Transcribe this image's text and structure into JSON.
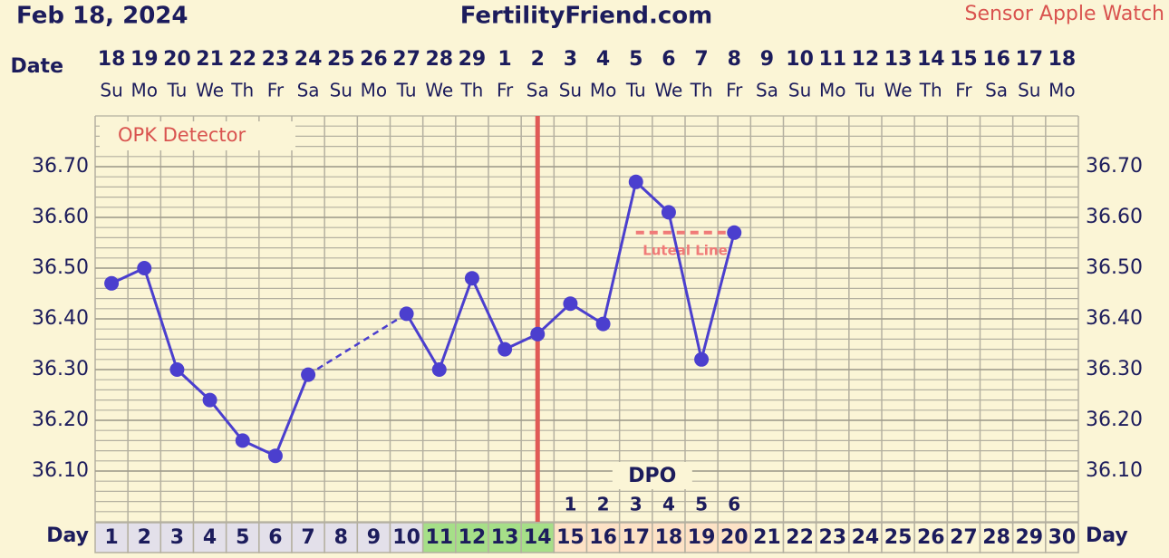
{
  "header": {
    "date": "Feb 18, 2024",
    "site": "FertilityFriend.com",
    "source": "Sensor Apple Watch"
  },
  "chart_data": {
    "type": "line",
    "date_label": "Date",
    "day_label": "Day",
    "opk_label": "OPK Detector",
    "dates": [
      18,
      19,
      20,
      21,
      22,
      23,
      24,
      25,
      26,
      27,
      28,
      29,
      1,
      2,
      3,
      4,
      5,
      6,
      7,
      8,
      9,
      10,
      11,
      12,
      13,
      14,
      15,
      16,
      17,
      18
    ],
    "weekdays": [
      "Su",
      "Mo",
      "Tu",
      "We",
      "Th",
      "Fr",
      "Sa",
      "Su",
      "Mo",
      "Tu",
      "We",
      "Th",
      "Fr",
      "Sa",
      "Su",
      "Mo",
      "Tu",
      "We",
      "Th",
      "Fr",
      "Sa",
      "Su",
      "Mo",
      "Tu",
      "We",
      "Th",
      "Fr",
      "Sa",
      "Su",
      "Mo"
    ],
    "categories": [
      1,
      2,
      3,
      4,
      5,
      6,
      7,
      8,
      9,
      10,
      11,
      12,
      13,
      14,
      15,
      16,
      17,
      18,
      19,
      20,
      21,
      22,
      23,
      24,
      25,
      26,
      27,
      28,
      29,
      30
    ],
    "day_colors": [
      "#e3e0ea",
      "#e3e0ea",
      "#e3e0ea",
      "#e3e0ea",
      "#e3e0ea",
      "#e3e0ea",
      "#e3e0ea",
      "#e3e0ea",
      "#e3e0ea",
      "#e3e0ea",
      "#a6df88",
      "#a6df88",
      "#a6df88",
      "#a6df88",
      "#fde2c6",
      "#fde2c6",
      "#fde2c6",
      "#fde2c6",
      "#fde2c6",
      "#fde2c6",
      "#fbf5d6",
      "#fbf5d6",
      "#fbf5d6",
      "#fbf5d6",
      "#fbf5d6",
      "#fbf5d6",
      "#fbf5d6",
      "#fbf5d6",
      "#fbf5d6",
      "#fbf5d6"
    ],
    "values": [
      36.47,
      36.5,
      36.3,
      36.24,
      36.16,
      36.13,
      36.29,
      null,
      null,
      36.41,
      36.3,
      36.48,
      36.34,
      36.37,
      36.43,
      36.39,
      36.67,
      36.61,
      36.32,
      36.57,
      null,
      null,
      null,
      null,
      null,
      null,
      null,
      null,
      null,
      null
    ],
    "color": "#4b3fce",
    "ylim": [
      36.0,
      36.8
    ],
    "yticks": [
      {
        "value": 36.1,
        "label": "36.10"
      },
      {
        "value": 36.2,
        "label": "36.20"
      },
      {
        "value": 36.3,
        "label": "36.30"
      },
      {
        "value": 36.4,
        "label": "36.40"
      },
      {
        "value": 36.5,
        "label": "36.50"
      },
      {
        "value": 36.6,
        "label": "36.60"
      },
      {
        "value": 36.7,
        "label": "36.70"
      }
    ],
    "grid": true,
    "ovulation_day": 14,
    "ovulation_color": "#e05a56",
    "coverline": {
      "label": "Luteal Line",
      "value": 36.57,
      "x": [
        17,
        20
      ],
      "color": "#f07a78"
    },
    "dpo_label": "DPO",
    "dpo": [
      null,
      null,
      null,
      null,
      null,
      null,
      null,
      null,
      null,
      null,
      null,
      null,
      null,
      null,
      1,
      2,
      3,
      4,
      5,
      6,
      null,
      null,
      null,
      null,
      null,
      null,
      null,
      null,
      null,
      null
    ]
  }
}
